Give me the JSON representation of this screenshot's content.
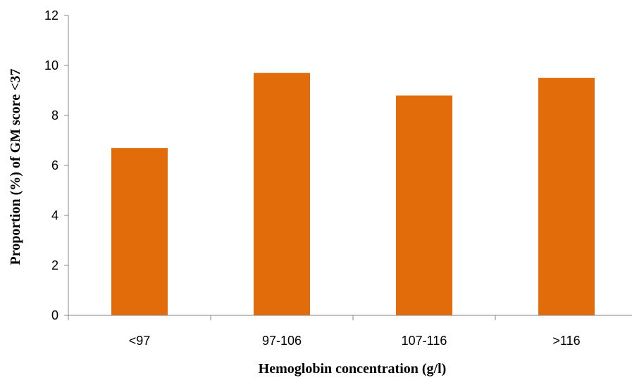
{
  "chart_data": {
    "type": "bar",
    "categories": [
      "<97",
      "97-106",
      "107-116",
      ">116"
    ],
    "values": [
      6.7,
      9.7,
      8.8,
      9.5
    ],
    "title": "",
    "xlabel": "Hemoglobin concentration (g/l)",
    "ylabel": "Proportion (%) of GM score <37",
    "ylim": [
      0,
      12
    ],
    "yticks": [
      "0",
      "2",
      "4",
      "6",
      "8",
      "10",
      "12"
    ],
    "bar_color": "#E36C0A",
    "grid": false,
    "legend": "none"
  }
}
